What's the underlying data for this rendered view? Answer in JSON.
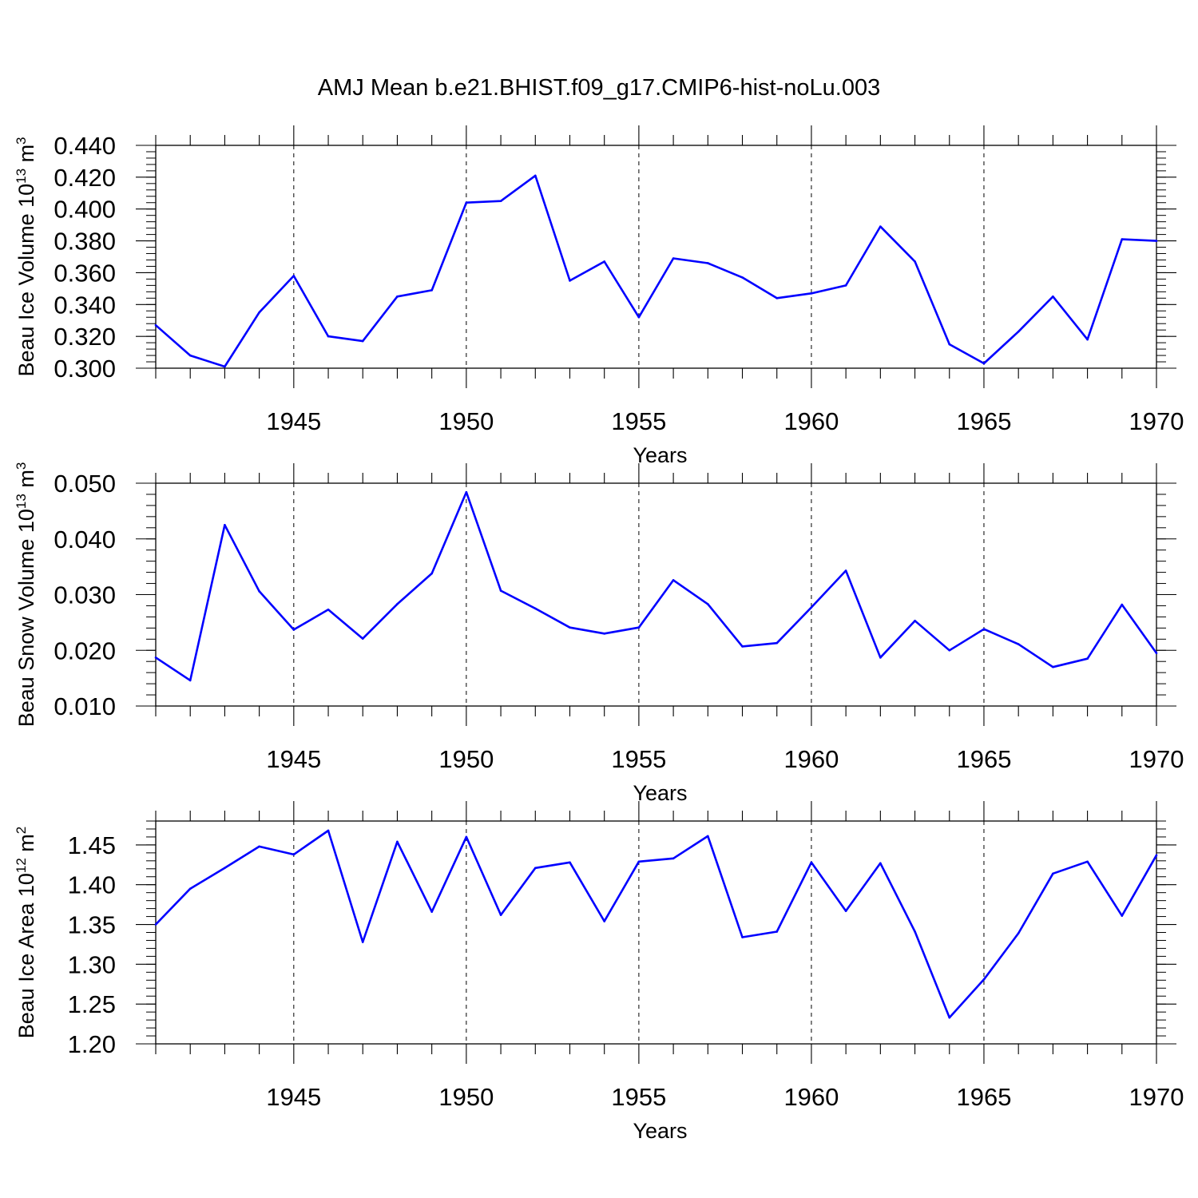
{
  "title": "AMJ Mean b.e21.BHIST.f09_g17.CMIP6-hist-noLu.003",
  "colors": {
    "line": "#0000ff",
    "axis": "#000000",
    "grid": "#000000"
  },
  "chart_data": [
    {
      "type": "line",
      "ylabel": {
        "text": "Beau Ice Volume 10",
        "exp": "13",
        "unit": " m",
        "unit_exp": "3"
      },
      "xlabel": "Years",
      "xlim": [
        1941,
        1970
      ],
      "ylim": [
        0.3,
        0.44
      ],
      "x_ticks": [
        "1945",
        "1950",
        "1955",
        "1960",
        "1965",
        "1970"
      ],
      "y_ticks": [
        "0.300",
        "0.320",
        "0.340",
        "0.360",
        "0.380",
        "0.400",
        "0.420",
        "0.440"
      ],
      "grid_x": [
        "1945",
        "1950",
        "1955",
        "1960",
        "1965"
      ],
      "x": [
        1941,
        1942,
        1943,
        1944,
        1945,
        1946,
        1947,
        1948,
        1949,
        1950,
        1951,
        1952,
        1953,
        1954,
        1955,
        1956,
        1957,
        1958,
        1959,
        1960,
        1961,
        1962,
        1963,
        1964,
        1965,
        1966,
        1967,
        1968,
        1969,
        1970
      ],
      "values": [
        0.327,
        0.308,
        0.301,
        0.335,
        0.358,
        0.32,
        0.317,
        0.345,
        0.349,
        0.404,
        0.405,
        0.421,
        0.355,
        0.367,
        0.332,
        0.369,
        0.366,
        0.357,
        0.344,
        0.347,
        0.352,
        0.389,
        0.367,
        0.315,
        0.303,
        0.323,
        0.345,
        0.318,
        0.381,
        0.38
      ]
    },
    {
      "type": "line",
      "ylabel": {
        "text": "Beau Snow Volume 10",
        "exp": "13",
        "unit": " m",
        "unit_exp": "3"
      },
      "xlabel": "Years",
      "xlim": [
        1941,
        1970
      ],
      "ylim": [
        0.01,
        0.05
      ],
      "x_ticks": [
        "1945",
        "1950",
        "1955",
        "1960",
        "1965",
        "1970"
      ],
      "y_ticks": [
        "0.010",
        "0.020",
        "0.030",
        "0.040",
        "0.050"
      ],
      "grid_x": [
        "1945",
        "1950",
        "1955",
        "1960",
        "1965"
      ],
      "x": [
        1941,
        1942,
        1943,
        1944,
        1945,
        1946,
        1947,
        1948,
        1949,
        1950,
        1951,
        1952,
        1953,
        1954,
        1955,
        1956,
        1957,
        1958,
        1959,
        1960,
        1961,
        1962,
        1963,
        1964,
        1965,
        1966,
        1967,
        1968,
        1969,
        1970
      ],
      "values": [
        0.0187,
        0.0146,
        0.0425,
        0.0306,
        0.0237,
        0.0273,
        0.0221,
        0.0283,
        0.0338,
        0.0484,
        0.0307,
        0.0275,
        0.0241,
        0.023,
        0.0241,
        0.0326,
        0.0283,
        0.0207,
        0.0213,
        0.0277,
        0.0343,
        0.0187,
        0.0253,
        0.02,
        0.0238,
        0.0211,
        0.017,
        0.0185,
        0.0282,
        0.0195
      ]
    },
    {
      "type": "line",
      "ylabel": {
        "text": "Beau Ice Area 10",
        "exp": "12",
        "unit": " m",
        "unit_exp": "2"
      },
      "xlabel": "Years",
      "xlim": [
        1941,
        1970
      ],
      "ylim": [
        1.2,
        1.48
      ],
      "x_ticks": [
        "1945",
        "1950",
        "1955",
        "1960",
        "1965",
        "1970"
      ],
      "y_ticks": [
        "1.20",
        "1.25",
        "1.30",
        "1.35",
        "1.40",
        "1.45"
      ],
      "grid_x": [
        "1945",
        "1950",
        "1955",
        "1960",
        "1965"
      ],
      "x": [
        1941,
        1942,
        1943,
        1944,
        1945,
        1946,
        1947,
        1948,
        1949,
        1950,
        1951,
        1952,
        1953,
        1954,
        1955,
        1956,
        1957,
        1958,
        1959,
        1960,
        1961,
        1962,
        1963,
        1964,
        1965,
        1966,
        1967,
        1968,
        1969,
        1970
      ],
      "values": [
        1.35,
        1.395,
        1.421,
        1.448,
        1.438,
        1.468,
        1.328,
        1.454,
        1.366,
        1.46,
        1.362,
        1.421,
        1.428,
        1.354,
        1.429,
        1.433,
        1.461,
        1.334,
        1.341,
        1.428,
        1.367,
        1.427,
        1.341,
        1.233,
        1.281,
        1.339,
        1.414,
        1.429,
        1.361,
        1.437
      ]
    }
  ]
}
